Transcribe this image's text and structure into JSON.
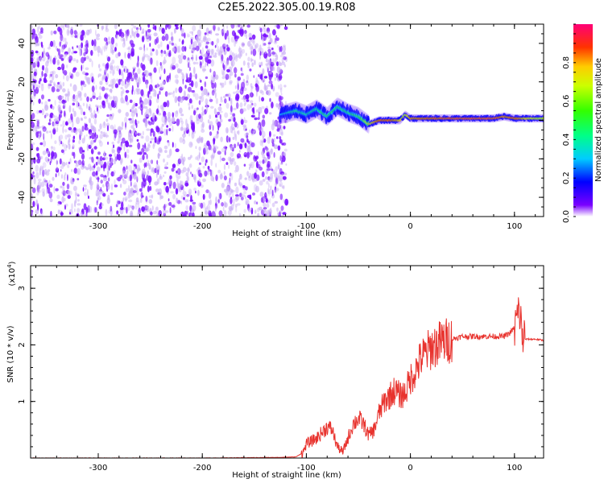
{
  "title": "C2E5.2022.305.00.19.R08",
  "chart_data": [
    {
      "type": "heatmap",
      "xlabel": "Height of straight line (km)",
      "ylabel": "Frequency (Hz)",
      "xlim": [
        -365,
        128
      ],
      "ylim": [
        -50,
        50
      ],
      "xticks": [
        -300,
        -200,
        -100,
        0,
        100
      ],
      "yticks": [
        -40,
        -20,
        0,
        20,
        40
      ],
      "noise_region_x": [
        -365,
        -125
      ],
      "signal_ridge": {
        "x": [
          -125,
          -110,
          -100,
          -90,
          -80,
          -70,
          -60,
          -50,
          -40,
          -30,
          -20,
          -10,
          -5,
          0,
          20,
          40,
          60,
          80,
          90,
          100,
          110,
          128
        ],
        "y": [
          3,
          5,
          3,
          6,
          2,
          7,
          4,
          2,
          -2,
          0,
          0,
          0,
          3,
          1,
          1,
          1,
          1,
          1,
          2,
          1,
          1,
          1
        ],
        "amplitude": [
          0.3,
          0.45,
          0.4,
          0.45,
          0.5,
          0.5,
          0.45,
          0.5,
          0.75,
          0.9,
          0.9,
          0.8,
          0.7,
          0.85,
          0.9,
          0.95,
          0.95,
          0.95,
          0.85,
          0.9,
          0.8,
          0.7
        ]
      },
      "colorbar": {
        "label": "Normalized spectral amplitude",
        "range": [
          0,
          1
        ],
        "ticks": [
          "0.0",
          "0.2",
          "0.4",
          "0.6",
          "0.8"
        ]
      }
    },
    {
      "type": "line",
      "xlabel": "Height of straight line (km)",
      "ylabel": "SNR (10 * v/v)",
      "yscale_label": "(x10",
      "yscale_exp": "4",
      "yscale_close": ")",
      "xlim": [
        -365,
        128
      ],
      "ylim": [
        0,
        3.4
      ],
      "xticks": [
        -300,
        -200,
        -100,
        0,
        100
      ],
      "yticks": [
        1,
        2,
        3
      ],
      "series": [
        {
          "color": "#e8332e",
          "x": [
            -365,
            -300,
            -200,
            -130,
            -110,
            -103,
            -100,
            -95,
            -90,
            -85,
            -80,
            -75,
            -72,
            -70,
            -65,
            -62,
            -58,
            -55,
            -50,
            -45,
            -40,
            -35,
            -30,
            -25,
            -20,
            -15,
            -10,
            -5,
            0,
            5,
            10,
            20,
            30,
            40,
            50,
            60,
            70,
            80,
            90,
            95,
            100,
            103,
            105,
            107,
            110,
            115,
            120,
            128
          ],
          "y": [
            0.0,
            0.0,
            0.0,
            0.01,
            0.02,
            0.1,
            0.25,
            0.3,
            0.35,
            0.45,
            0.55,
            0.5,
            0.3,
            0.2,
            0.1,
            0.25,
            0.45,
            0.6,
            0.7,
            0.6,
            0.4,
            0.5,
            0.8,
            1.0,
            1.1,
            1.2,
            1.1,
            1.15,
            1.4,
            1.55,
            1.75,
            1.95,
            2.05,
            2.1,
            2.15,
            2.15,
            2.15,
            2.15,
            2.15,
            2.2,
            2.3,
            2.5,
            2.6,
            2.2,
            2.1,
            2.1,
            2.1,
            2.08
          ]
        }
      ]
    }
  ]
}
